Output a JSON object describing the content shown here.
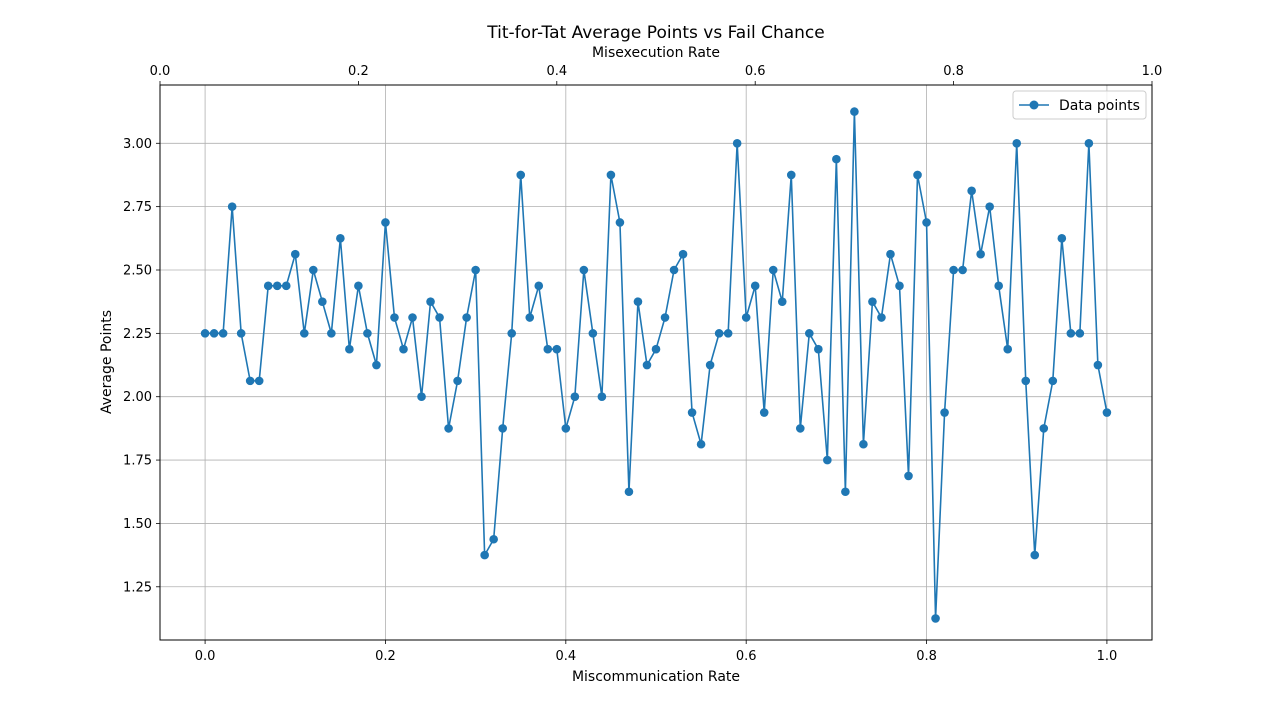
{
  "chart_data": {
    "type": "line",
    "title": "Tit-for-Tat Average Points vs Fail Chance",
    "xlabel": "Miscommunication Rate",
    "ylabel": "Average Points",
    "top_xlabel": "Misexecution Rate",
    "xlim": [
      -0.05,
      1.05
    ],
    "ylim": [
      1.04,
      3.23
    ],
    "top_xlim": [
      0.0,
      1.0
    ],
    "x_ticks": [
      "0.0",
      "0.2",
      "0.4",
      "0.6",
      "0.8",
      "1.0"
    ],
    "x_tick_values": [
      0.0,
      0.2,
      0.4,
      0.6,
      0.8,
      1.0
    ],
    "top_x_ticks": [
      "0.0",
      "0.2",
      "0.4",
      "0.6",
      "0.8",
      "1.0"
    ],
    "top_x_tick_values": [
      0.0,
      0.2,
      0.4,
      0.6,
      0.8,
      1.0
    ],
    "y_ticks": [
      "1.25",
      "1.50",
      "1.75",
      "2.00",
      "2.25",
      "2.50",
      "2.75",
      "3.00"
    ],
    "y_tick_values": [
      1.25,
      1.5,
      1.75,
      2.0,
      2.25,
      2.5,
      2.75,
      3.0
    ],
    "grid": true,
    "legend_position": "top-right",
    "series": [
      {
        "name": "Data points",
        "color": "#1f77b4",
        "marker": "circle",
        "x": [
          0.0,
          0.01,
          0.02,
          0.03,
          0.04,
          0.05,
          0.06,
          0.07,
          0.08,
          0.09,
          0.1,
          0.11,
          0.12,
          0.13,
          0.14,
          0.15,
          0.16,
          0.17,
          0.18,
          0.19,
          0.2,
          0.21,
          0.22,
          0.23,
          0.24,
          0.25,
          0.26,
          0.27,
          0.28,
          0.29,
          0.3,
          0.31,
          0.32,
          0.33,
          0.34,
          0.35,
          0.36,
          0.37,
          0.38,
          0.39,
          0.4,
          0.41,
          0.42,
          0.43,
          0.44,
          0.45,
          0.46,
          0.47,
          0.48,
          0.49,
          0.5,
          0.51,
          0.52,
          0.53,
          0.54,
          0.55,
          0.56,
          0.57,
          0.58,
          0.59,
          0.6,
          0.61,
          0.62,
          0.63,
          0.64,
          0.65,
          0.66,
          0.67,
          0.68,
          0.69,
          0.7,
          0.71,
          0.72,
          0.73,
          0.74,
          0.75,
          0.76,
          0.77,
          0.78,
          0.79,
          0.8,
          0.81,
          0.82,
          0.83,
          0.84,
          0.85,
          0.86,
          0.87,
          0.88,
          0.89,
          0.9,
          0.91,
          0.92,
          0.93,
          0.94,
          0.95,
          0.96,
          0.97,
          0.98,
          0.99,
          1.0
        ],
        "y": [
          2.25,
          2.25,
          2.25,
          2.75,
          2.25,
          2.0625,
          2.0625,
          2.4375,
          2.4375,
          2.4375,
          2.5625,
          2.25,
          2.5,
          2.375,
          2.25,
          2.625,
          2.1875,
          2.4375,
          2.25,
          2.125,
          2.6875,
          2.3125,
          2.1875,
          2.3125,
          2.0,
          2.375,
          2.3125,
          1.875,
          2.0625,
          2.3125,
          2.5,
          1.375,
          1.4375,
          1.875,
          2.25,
          2.875,
          2.3125,
          2.4375,
          2.1875,
          2.1875,
          1.875,
          2.0,
          2.5,
          2.25,
          2.0,
          2.875,
          2.6875,
          1.625,
          2.375,
          2.125,
          2.1875,
          2.3125,
          2.5,
          2.5625,
          1.9375,
          1.8125,
          2.125,
          2.25,
          2.25,
          3.0,
          2.3125,
          2.4375,
          1.9375,
          2.5,
          2.375,
          2.875,
          1.875,
          2.25,
          2.1875,
          1.75,
          2.9375,
          1.625,
          3.125,
          1.8125,
          2.375,
          2.3125,
          2.5625,
          2.4375,
          1.6875,
          2.875,
          2.6875,
          1.125,
          1.9375,
          2.5,
          2.5,
          2.8125,
          2.5625,
          2.75,
          2.4375,
          2.1875,
          3.0,
          2.0625,
          1.375,
          1.875,
          2.0625,
          2.625,
          2.25,
          2.25,
          3.0,
          2.125,
          1.9375
        ]
      }
    ]
  }
}
